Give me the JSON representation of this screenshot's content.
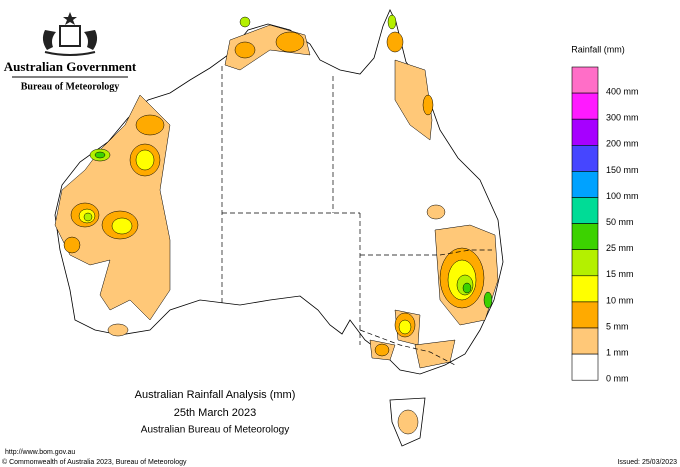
{
  "header": {
    "government": "Australian Government",
    "bureau": "Bureau of Meteorology"
  },
  "legend": {
    "title": "Rainfall (mm)",
    "items": [
      {
        "label": "400 mm",
        "color": "#ff6ec7"
      },
      {
        "label": "300 mm",
        "color": "#ff1aff"
      },
      {
        "label": "200 mm",
        "color": "#a600ff"
      },
      {
        "label": "150 mm",
        "color": "#4646ff"
      },
      {
        "label": "100 mm",
        "color": "#00a2ff"
      },
      {
        "label": "50 mm",
        "color": "#00dc96"
      },
      {
        "label": "25 mm",
        "color": "#3cd200"
      },
      {
        "label": "15 mm",
        "color": "#b4f000"
      },
      {
        "label": "10 mm",
        "color": "#ffff00"
      },
      {
        "label": "5 mm",
        "color": "#ffaa00"
      },
      {
        "label": "1 mm",
        "color": "#ffc878"
      },
      {
        "label": "0 mm",
        "color": "#ffffff"
      }
    ]
  },
  "title": {
    "line1": "Australian Rainfall Analysis (mm)",
    "line2": "25th March 2023",
    "line3": "Australian Bureau of Meteorology"
  },
  "footer": {
    "url": "http://www.bom.gov.au",
    "copyright": "© Commonwealth of Australia 2023, Bureau of Meteorology",
    "issued": "Issued: 25/03/2023"
  }
}
